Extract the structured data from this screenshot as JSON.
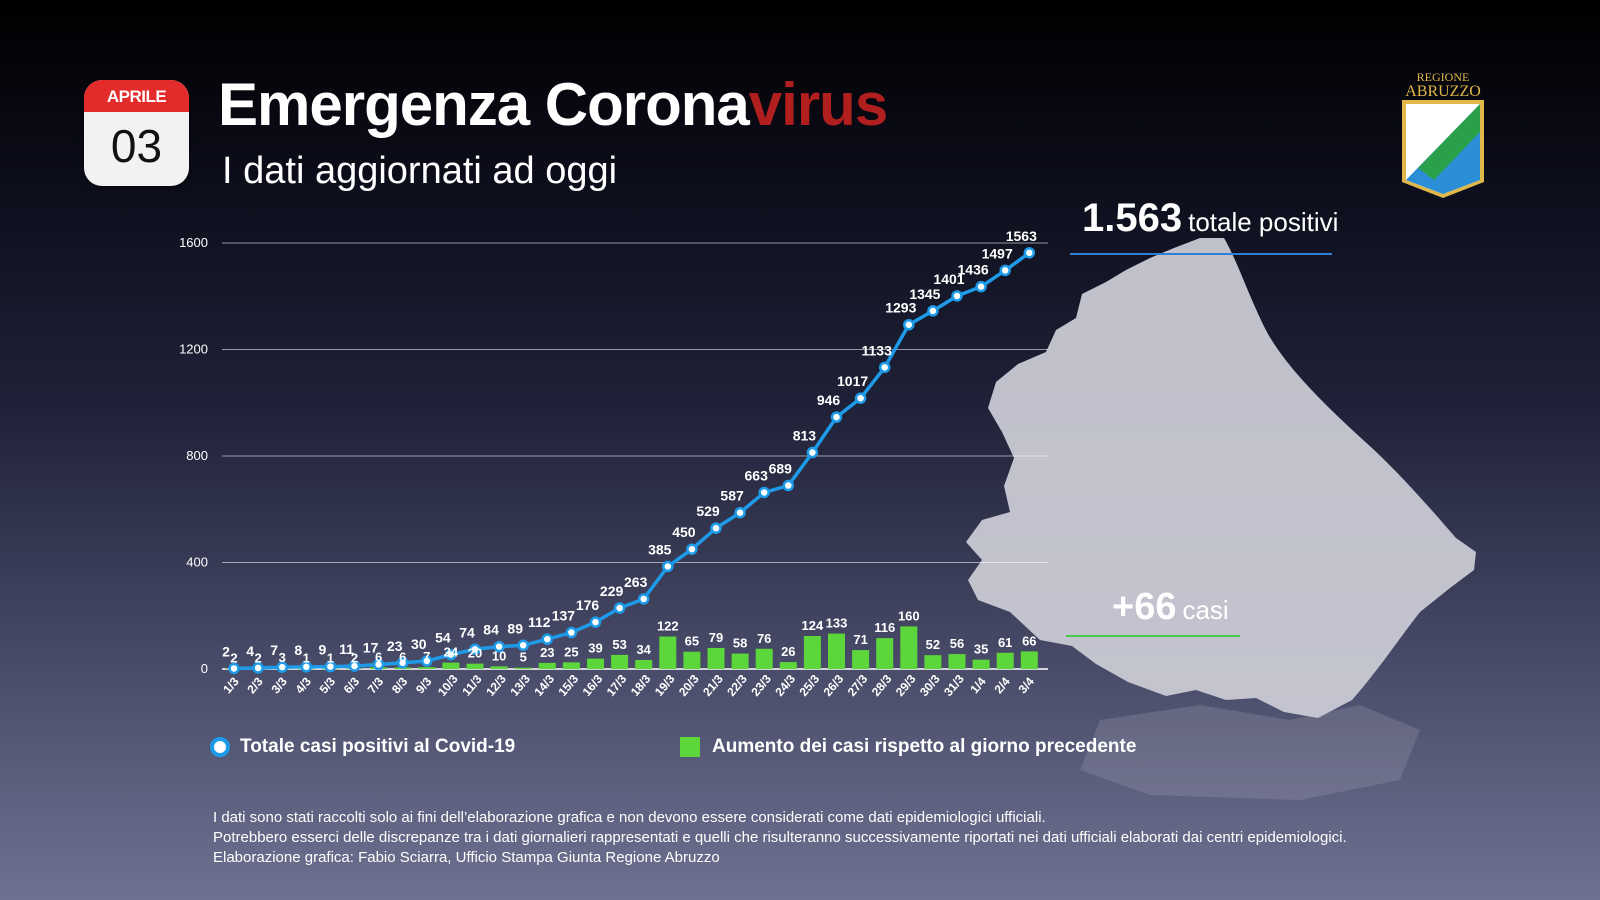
{
  "header": {
    "month": "APRILE",
    "day": "03",
    "title_main": "Emergenza Corona",
    "title_accent": "virus",
    "subtitle": "I dati aggiornati ad oggi"
  },
  "logo": {
    "line1": "REGIONE",
    "line2": "ABRUZZO"
  },
  "totals": {
    "total_value": "1.563",
    "total_label": "totale positivi",
    "increase_value": "+66",
    "increase_label": "casi"
  },
  "legend": {
    "total_label": "Totale casi positivi al Covid-19",
    "increase_label": "Aumento dei casi rispetto al giorno precedente"
  },
  "notes": [
    "I dati sono stati raccolti solo ai fini dell’elaborazione grafica e non devono essere considerati come dati epidemiologici ufficiali.",
    "Potrebbero esserci delle discrepanze tra i dati giornalieri rappresentati e quelli che risulteranno successivamente riportati nei dati ufficiali elaborati dai centri epidemiologici.",
    "Elaborazione grafica: Fabio Sciarra, Ufficio Stampa Giunta Regione Abruzzo"
  ],
  "colors": {
    "line": "#1e9be8",
    "bars": "#5cd63a",
    "accent": "#b01e1e",
    "calendar_top": "#e32b2b",
    "map": "#c9cad4"
  },
  "chart_data": {
    "type": "bar",
    "categories": [
      "1/3",
      "2/3",
      "3/3",
      "4/3",
      "5/3",
      "6/3",
      "7/3",
      "8/3",
      "9/3",
      "10/3",
      "11/3",
      "12/3",
      "13/3",
      "14/3",
      "15/3",
      "16/3",
      "17/3",
      "18/3",
      "19/3",
      "20/3",
      "21/3",
      "22/3",
      "23/3",
      "24/3",
      "25/3",
      "26/3",
      "27/3",
      "28/3",
      "29/3",
      "30/3",
      "31/3",
      "1/4",
      "2/4",
      "3/4"
    ],
    "series": [
      {
        "name": "Totale casi positivi al Covid-19",
        "type": "line",
        "values": [
          2,
          4,
          7,
          8,
          9,
          11,
          17,
          23,
          30,
          54,
          74,
          84,
          89,
          112,
          137,
          176,
          229,
          263,
          385,
          450,
          529,
          587,
          663,
          689,
          813,
          946,
          1017,
          1133,
          1293,
          1345,
          1401,
          1436,
          1497,
          1563
        ]
      },
      {
        "name": "Aumento dei casi rispetto al giorno precedente",
        "type": "bar",
        "values": [
          2,
          2,
          3,
          1,
          1,
          2,
          6,
          6,
          7,
          24,
          20,
          10,
          5,
          23,
          25,
          39,
          53,
          34,
          122,
          65,
          79,
          58,
          76,
          26,
          124,
          133,
          71,
          116,
          160,
          52,
          56,
          35,
          61,
          66
        ]
      }
    ],
    "yticks": [
      0,
      400,
      800,
      1200,
      1600
    ],
    "ylim": [
      0,
      1600
    ],
    "grid": true,
    "legend_position": "bottom"
  }
}
